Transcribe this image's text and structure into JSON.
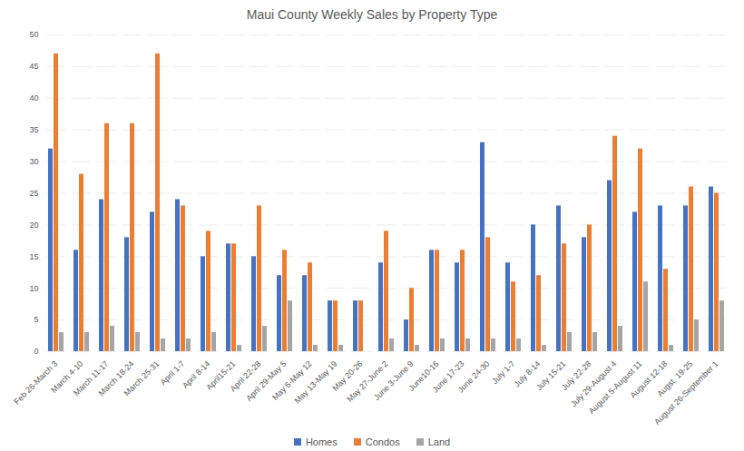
{
  "chart_data": {
    "type": "bar",
    "title": "Maui County Weekly Sales by Property Type",
    "categories": [
      "Feb 26-March 3",
      "March 4-10",
      "March 11-17",
      "March 18-24",
      "March 25-31",
      "April 1-7",
      "April 8-14",
      "April15-21",
      "April 22-28",
      "April 29-May 5",
      "May 6-May 12",
      "May 13-May 19",
      "May 20-26",
      "May 27-June 2",
      "June 3-June 9",
      "June10-16",
      "June 17-23",
      "June 24-30",
      "July 1-7",
      "July 8-14",
      "July 15-21",
      "July 22-28",
      "July 29-August 4",
      "August 5-August 11",
      "August 12-18",
      "Augst. 19-25",
      "August 26-September 1"
    ],
    "series": [
      {
        "name": "Homes",
        "color": "#4472c4",
        "values": [
          32,
          16,
          24,
          18,
          22,
          24,
          15,
          17,
          15,
          12,
          12,
          8,
          8,
          14,
          5,
          16,
          14,
          33,
          14,
          20,
          23,
          18,
          27,
          22,
          23,
          23,
          26
        ]
      },
      {
        "name": "Condos",
        "color": "#ed7d31",
        "values": [
          47,
          28,
          36,
          36,
          47,
          23,
          19,
          17,
          23,
          16,
          14,
          8,
          8,
          19,
          10,
          16,
          16,
          18,
          11,
          12,
          17,
          20,
          34,
          32,
          13,
          26,
          25
        ]
      },
      {
        "name": "Land",
        "color": "#a5a5a5",
        "values": [
          3,
          3,
          4,
          3,
          2,
          2,
          3,
          1,
          4,
          8,
          1,
          1,
          0,
          2,
          1,
          2,
          2,
          2,
          2,
          1,
          3,
          3,
          4,
          11,
          1,
          5,
          8
        ]
      }
    ],
    "ylim": [
      0,
      50
    ],
    "yticks": [
      0,
      5,
      10,
      15,
      20,
      25,
      30,
      35,
      40,
      45,
      50
    ],
    "grid": true,
    "legend": "bottom"
  }
}
